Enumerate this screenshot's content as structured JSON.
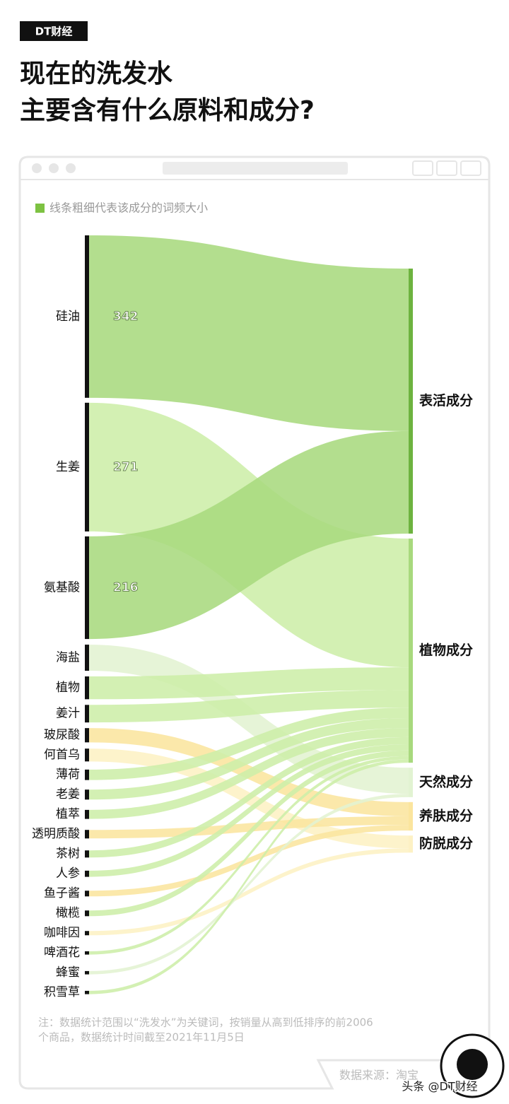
{
  "brand": "DT财经",
  "footer": {
    "source": "数据来源：淘宝",
    "watermark": "头条 @DT财经"
  },
  "chart_data": {
    "type": "sankey",
    "title": [
      "现在的洗发水",
      "主要含有什么原料和成分?"
    ],
    "legend": "线条粗细代表该成分的词频大小",
    "legend_color": "#7dc242",
    "targets": [
      {
        "name": "表活成分",
        "color": "#a8d97e",
        "bar_color": "#6db33f"
      },
      {
        "name": "植物成分",
        "color": "#cdeea8",
        "bar_color": "#a8d97e"
      },
      {
        "name": "天然成分",
        "color": "#e2f3d2",
        "bar_color": "#e2f3d2"
      },
      {
        "name": "养肤成分",
        "color": "#fbe59e",
        "bar_color": "#fbe59e"
      },
      {
        "name": "防脱成分",
        "color": "#fdf1c4",
        "bar_color": "#fdf1c4"
      }
    ],
    "nodes": [
      {
        "name": "硅油",
        "value": 342,
        "target": 0,
        "show_value": true
      },
      {
        "name": "生姜",
        "value": 271,
        "target": 1,
        "show_value": true
      },
      {
        "name": "氨基酸",
        "value": 216,
        "target": 0,
        "show_value": true
      },
      {
        "name": "海盐",
        "value": 55,
        "target": 2
      },
      {
        "name": "植物",
        "value": 48,
        "target": 1
      },
      {
        "name": "姜汁",
        "value": 37,
        "target": 1
      },
      {
        "name": "玻尿酸",
        "value": 30,
        "target": 3
      },
      {
        "name": "何首乌",
        "value": 27,
        "target": 4
      },
      {
        "name": "薄荷",
        "value": 22,
        "target": 1
      },
      {
        "name": "老姜",
        "value": 21,
        "target": 1
      },
      {
        "name": "植萃",
        "value": 19,
        "target": 1
      },
      {
        "name": "透明质酸",
        "value": 18,
        "target": 3
      },
      {
        "name": "茶树",
        "value": 15,
        "target": 1
      },
      {
        "name": "人参",
        "value": 13,
        "target": 1
      },
      {
        "name": "鱼子酱",
        "value": 12,
        "target": 3
      },
      {
        "name": "橄榄",
        "value": 12,
        "target": 1
      },
      {
        "name": "咖啡因",
        "value": 9,
        "target": 4
      },
      {
        "name": "啤酒花",
        "value": 7,
        "target": 1
      },
      {
        "name": "蜂蜜",
        "value": 7,
        "target": 2
      },
      {
        "name": "积雪草",
        "value": 7,
        "target": 1
      }
    ],
    "note": [
      "注：数据统计范围以“洗发水”为关键词，按销量从高到低排序的前2006",
      "个商品，数据统计时间截至2021年11月5日"
    ]
  }
}
